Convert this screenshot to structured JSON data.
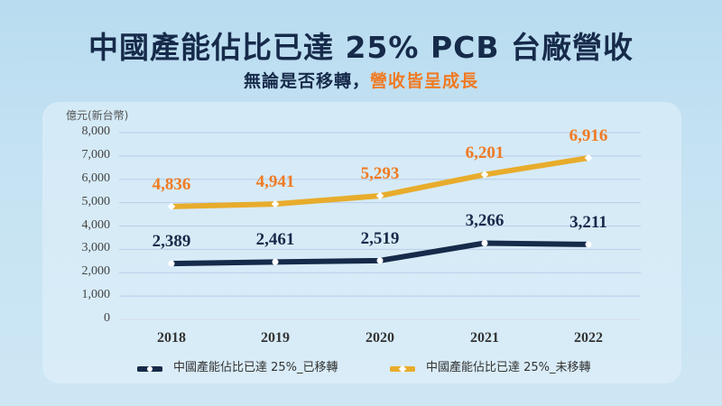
{
  "header": {
    "title": "中國產能佔比已達 25% PCB 台廠營收",
    "subtitle_main": "無論是否移轉，",
    "subtitle_highlight": "營收皆呈成長"
  },
  "colors": {
    "navy": "#162a4a",
    "gold": "#e8ac2c",
    "orange": "#f07a22"
  },
  "chart_data": {
    "type": "line",
    "title": "中國產能佔比已達 25% PCB 台廠營收",
    "subtitle": "無論是否移轉，營收皆呈成長",
    "xlabel": "",
    "ylabel": "億元(新台幣)",
    "categories": [
      "2018",
      "2019",
      "2020",
      "2021",
      "2022"
    ],
    "series": [
      {
        "name": "中國產能佔比已達 25%_已移轉",
        "color": "#162a4a",
        "values": [
          2389,
          2461,
          2519,
          3266,
          3211
        ]
      },
      {
        "name": "中國產能佔比已達 25%_未移轉",
        "color": "#e8ac2c",
        "values": [
          4836,
          4941,
          5293,
          6201,
          6916
        ]
      }
    ],
    "ylim": [
      0,
      8000
    ],
    "yticks": [
      "0",
      "1,000",
      "2,000",
      "3,000",
      "4,000",
      "5,000",
      "6,000",
      "7,000",
      "8,000"
    ],
    "grid": true,
    "legend_position": "bottom",
    "data_labels": {
      "transferred": [
        "2,389",
        "2,461",
        "2,519",
        "3,266",
        "3,211"
      ],
      "not_transferred": [
        "4,836",
        "4,941",
        "5,293",
        "6,201",
        "6,916"
      ]
    }
  }
}
